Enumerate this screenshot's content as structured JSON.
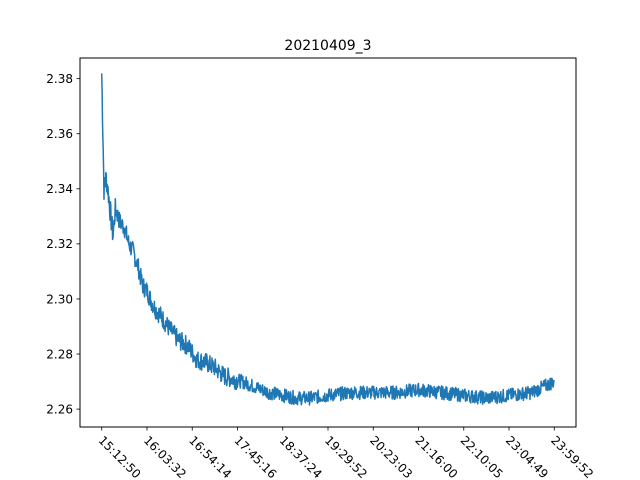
{
  "chart_data": {
    "type": "line",
    "title": "20210409_3",
    "xlabel": "",
    "ylabel": "",
    "ylim": [
      2.2535,
      2.3875
    ],
    "yticks": [
      2.26,
      2.28,
      2.3,
      2.32,
      2.34,
      2.36,
      2.38
    ],
    "ytick_labels": [
      "2.26",
      "2.28",
      "2.30",
      "2.32",
      "2.34",
      "2.36",
      "2.38"
    ],
    "xtick_labels": [
      "15:12:50",
      "16:03:32",
      "16:54:14",
      "17:45:16",
      "18:37:24",
      "19:29:52",
      "20:23:03",
      "21:16:00",
      "22:10:05",
      "23:04:49",
      "23:59:52"
    ],
    "grid": false,
    "series": [
      {
        "color": "#1f77b4",
        "x": [
          0,
          0.05,
          0.1,
          0.15,
          0.2,
          0.25,
          0.3,
          0.4,
          0.5,
          0.6,
          0.7,
          0.8,
          0.9,
          1.0,
          1.1,
          1.2,
          1.3,
          1.5,
          1.7,
          1.9,
          2.1,
          2.3,
          2.5,
          2.7,
          2.9,
          3.1,
          3.4,
          3.7,
          4.0,
          4.3,
          4.6,
          5.0,
          5.5,
          6.0,
          6.5,
          7.0,
          7.5,
          8.0,
          8.5,
          9.0,
          9.5,
          10.0
        ],
        "y": [
          2.382,
          2.34,
          2.344,
          2.338,
          2.33,
          2.323,
          2.333,
          2.328,
          2.326,
          2.32,
          2.317,
          2.312,
          2.305,
          2.303,
          2.299,
          2.296,
          2.294,
          2.289,
          2.285,
          2.283,
          2.278,
          2.277,
          2.275,
          2.272,
          2.271,
          2.27,
          2.268,
          2.266,
          2.265,
          2.264,
          2.264,
          2.265,
          2.266,
          2.266,
          2.266,
          2.267,
          2.266,
          2.265,
          2.264,
          2.265,
          2.266,
          2.27
        ]
      }
    ]
  }
}
